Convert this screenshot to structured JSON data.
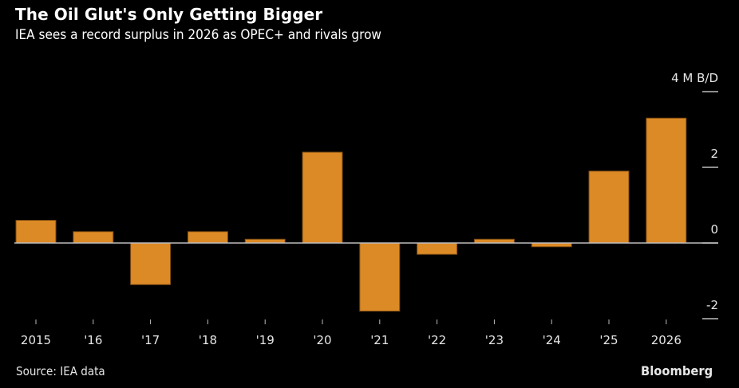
{
  "header": {
    "title": "The Oil Glut's Only Getting Bigger",
    "subtitle": "IEA sees a record surplus in 2026 as OPEC+ and rivals grow"
  },
  "footer": {
    "source": "Source: IEA data",
    "brand": "Bloomberg"
  },
  "colors": {
    "bar": "#dc8a26",
    "bar_edge": "#7a4a12",
    "axis": "#bdbdbd",
    "text": "#e6e6e6",
    "background": "#000000"
  },
  "chart_data": {
    "type": "bar",
    "title": "The Oil Glut's Only Getting Bigger",
    "subtitle": "IEA sees a record surplus in 2026 as OPEC+ and rivals grow",
    "xlabel": "",
    "ylabel": "M B/D",
    "categories": [
      "2015",
      "'16",
      "'17",
      "'18",
      "'19",
      "'20",
      "'21",
      "'22",
      "'23",
      "'24",
      "'25",
      "2026"
    ],
    "values": [
      0.6,
      0.3,
      -1.1,
      0.3,
      0.1,
      2.4,
      -1.8,
      -0.3,
      0.1,
      -0.1,
      1.9,
      3.3
    ],
    "ylim": [
      -2,
      4
    ],
    "yticks": [
      4,
      2,
      0,
      -2
    ],
    "ytick_labels": [
      "4 M B/D",
      "2",
      "0",
      "-2"
    ],
    "y_axis_side": "right",
    "grid": false,
    "legend": "none"
  }
}
